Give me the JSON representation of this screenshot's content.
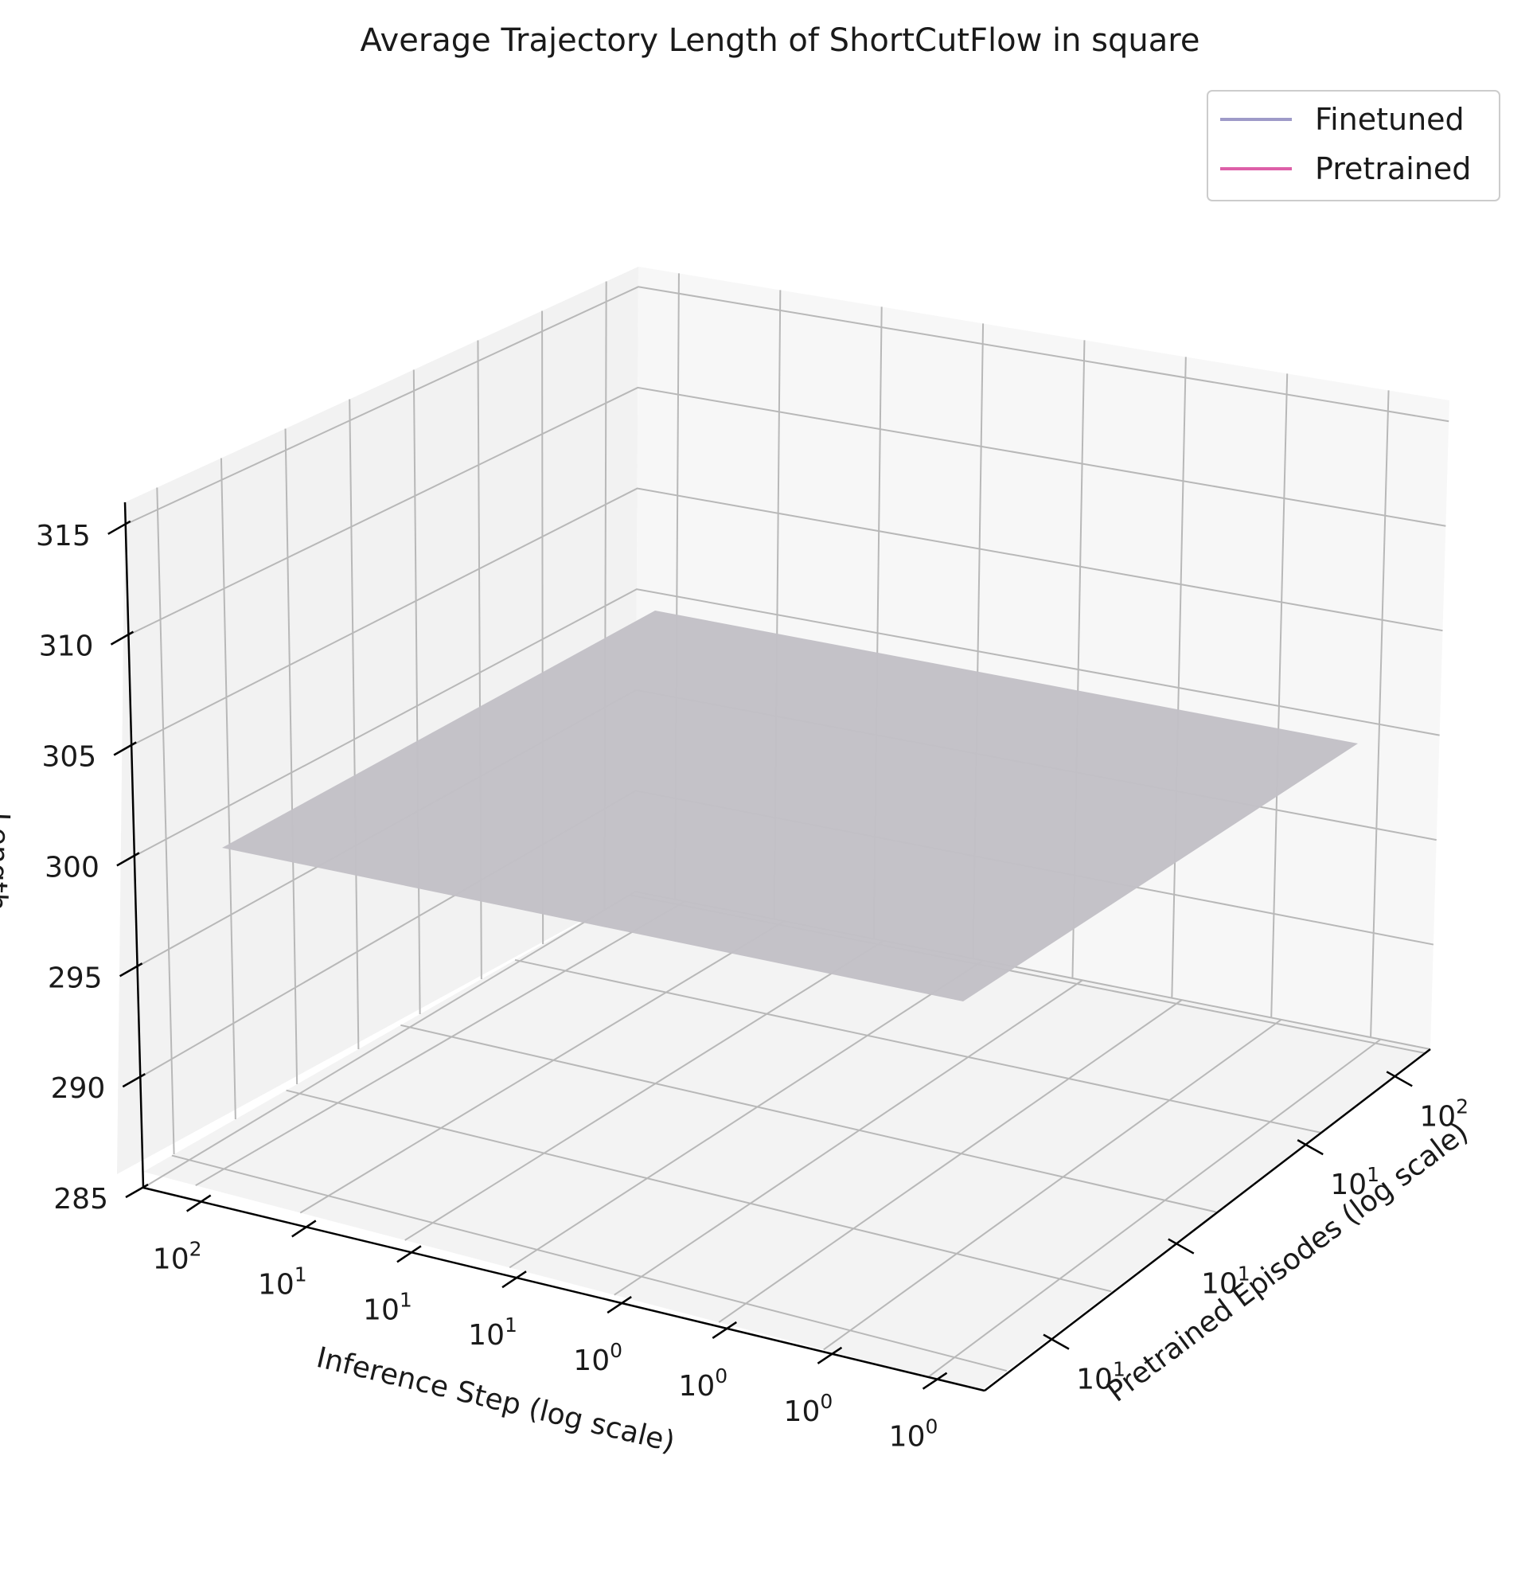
{
  "chart_data": {
    "type": "surface3d",
    "title": "Average Trajectory Length of ShortCutFlow in square",
    "xlabel": "Inference Step (log scale)",
    "ylabel": "Pretrained Episodes (log scale)",
    "zlabel": "Length",
    "x_ticks": [
      {
        "base": "10",
        "exp": "2"
      },
      {
        "base": "10",
        "exp": "1"
      },
      {
        "base": "10",
        "exp": "1"
      },
      {
        "base": "10",
        "exp": "1"
      },
      {
        "base": "10",
        "exp": "0"
      },
      {
        "base": "10",
        "exp": "0"
      },
      {
        "base": "10",
        "exp": "0"
      },
      {
        "base": "10",
        "exp": "0"
      }
    ],
    "y_ticks": [
      {
        "base": "10",
        "exp": "1"
      },
      {
        "base": "10",
        "exp": "1"
      },
      {
        "base": "10",
        "exp": "1"
      },
      {
        "base": "10",
        "exp": "2"
      }
    ],
    "z_ticks": [
      "285",
      "290",
      "295",
      "300",
      "305",
      "310",
      "315"
    ],
    "zlim": [
      285,
      316
    ],
    "grid": true,
    "legend_position": "top-right",
    "series": [
      {
        "name": "Finetuned",
        "color": "#9e9ac8",
        "z_surface": 300
      },
      {
        "name": "Pretrained",
        "color": "#dd5fa8",
        "z_surface": 300
      }
    ],
    "surface_color": "#c2c0c6"
  }
}
